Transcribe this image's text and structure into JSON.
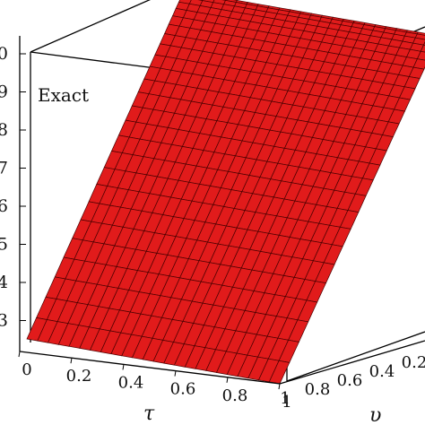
{
  "chart_data": {
    "type": "surface",
    "title": "Exact",
    "xlabel": "τ",
    "ylabel": "υ",
    "x_ticks": [
      "0",
      "0.2",
      "0.4",
      "0.6",
      "0.8",
      "1"
    ],
    "y_ticks": [
      "1",
      "0.8",
      "0.6",
      "0.4",
      "0.2"
    ],
    "z_ticks": [
      "0",
      "9",
      "8",
      "7",
      "6",
      "5",
      "4",
      "3"
    ],
    "surface_color": "#e11b1b",
    "mesh_color": "#4a0000",
    "box_color": "#000000",
    "mesh": {
      "rows": 26,
      "cols": 24
    }
  }
}
